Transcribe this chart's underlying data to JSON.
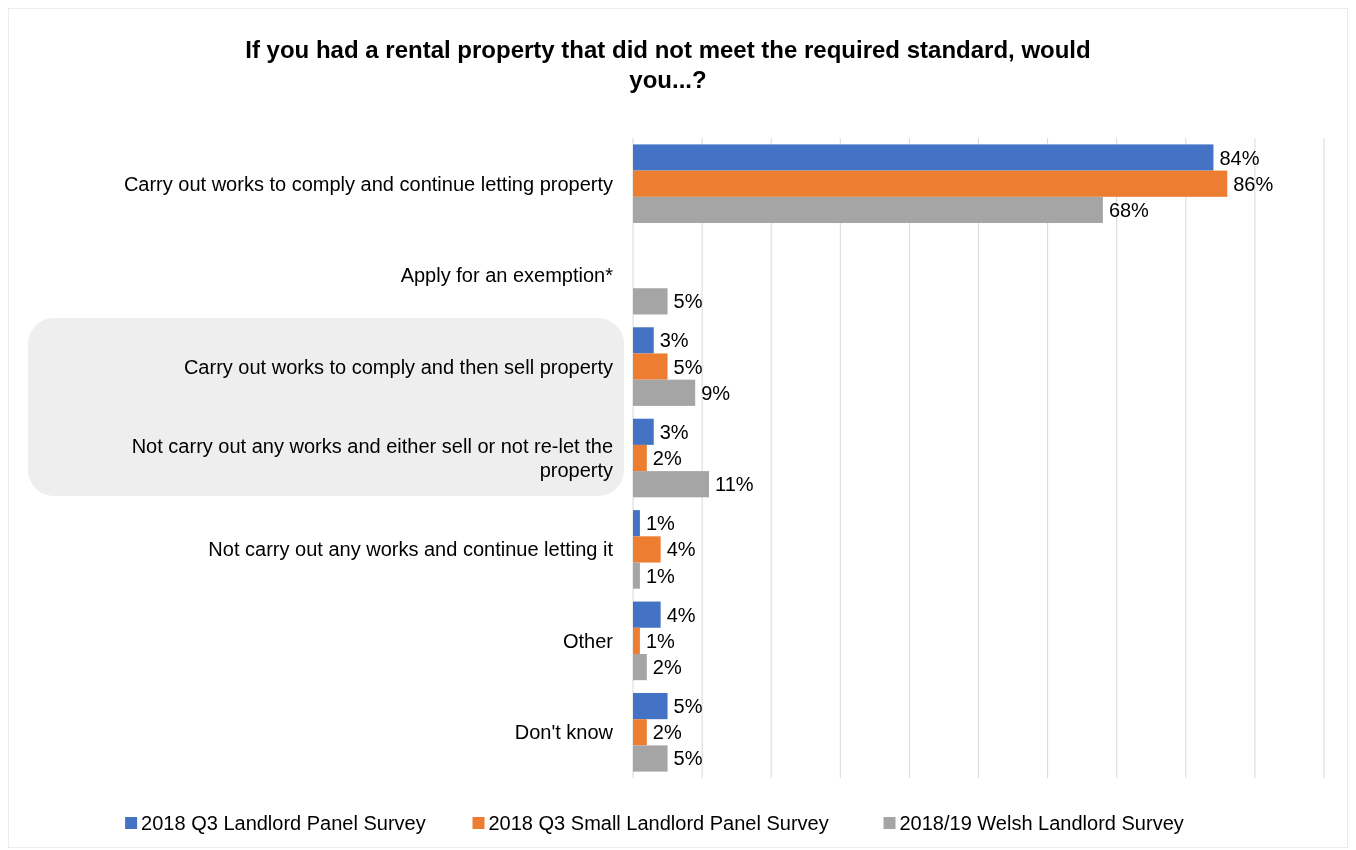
{
  "chart_data": {
    "type": "bar",
    "orientation": "horizontal",
    "title": "If you had a rental property that did not meet the required standard, would you...?",
    "categories": [
      "Carry out works to comply and continue letting property",
      "Apply for an exemption*",
      "Carry out works to comply and then sell property",
      "Not carry out any works and either sell or not re-let the property",
      "Not carry out any works and continue letting it",
      "Other",
      "Don't know"
    ],
    "series": [
      {
        "name": "2018 Q3 Landlord Panel Survey",
        "color": "#4472c4",
        "values": [
          84,
          null,
          3,
          3,
          1,
          4,
          5
        ],
        "value_labels": [
          "84%",
          null,
          "3%",
          "3%",
          "1%",
          "4%",
          "5%"
        ]
      },
      {
        "name": "2018 Q3 Small Landlord Panel Survey",
        "color": "#ed7d31",
        "values": [
          86,
          null,
          5,
          2,
          4,
          1,
          2
        ],
        "value_labels": [
          "86%",
          null,
          "5%",
          "2%",
          "4%",
          "1%",
          "2%"
        ]
      },
      {
        "name": "2018/19 Welsh Landlord Survey",
        "color": "#a5a5a5",
        "values": [
          68,
          5,
          9,
          11,
          1,
          2,
          5
        ],
        "value_labels": [
          "68%",
          "5%",
          "9%",
          "11%",
          "1%",
          "2%",
          "5%"
        ]
      }
    ],
    "xlim": [
      0,
      100
    ],
    "xticks": [
      {
        "value": 0,
        "label": null
      },
      {
        "value": 10,
        "label": null
      },
      {
        "value": 20,
        "label": null
      },
      {
        "value": 30,
        "label": null
      },
      {
        "value": 40,
        "label": null
      },
      {
        "value": 50,
        "label": null
      },
      {
        "value": 60,
        "label": null
      },
      {
        "value": 70,
        "label": null
      },
      {
        "value": 80,
        "label": null
      },
      {
        "value": 90,
        "label": null
      },
      {
        "value": 100,
        "label": null
      }
    ],
    "tick_labels": "y",
    "grid": "x",
    "legend": "bottom"
  }
}
